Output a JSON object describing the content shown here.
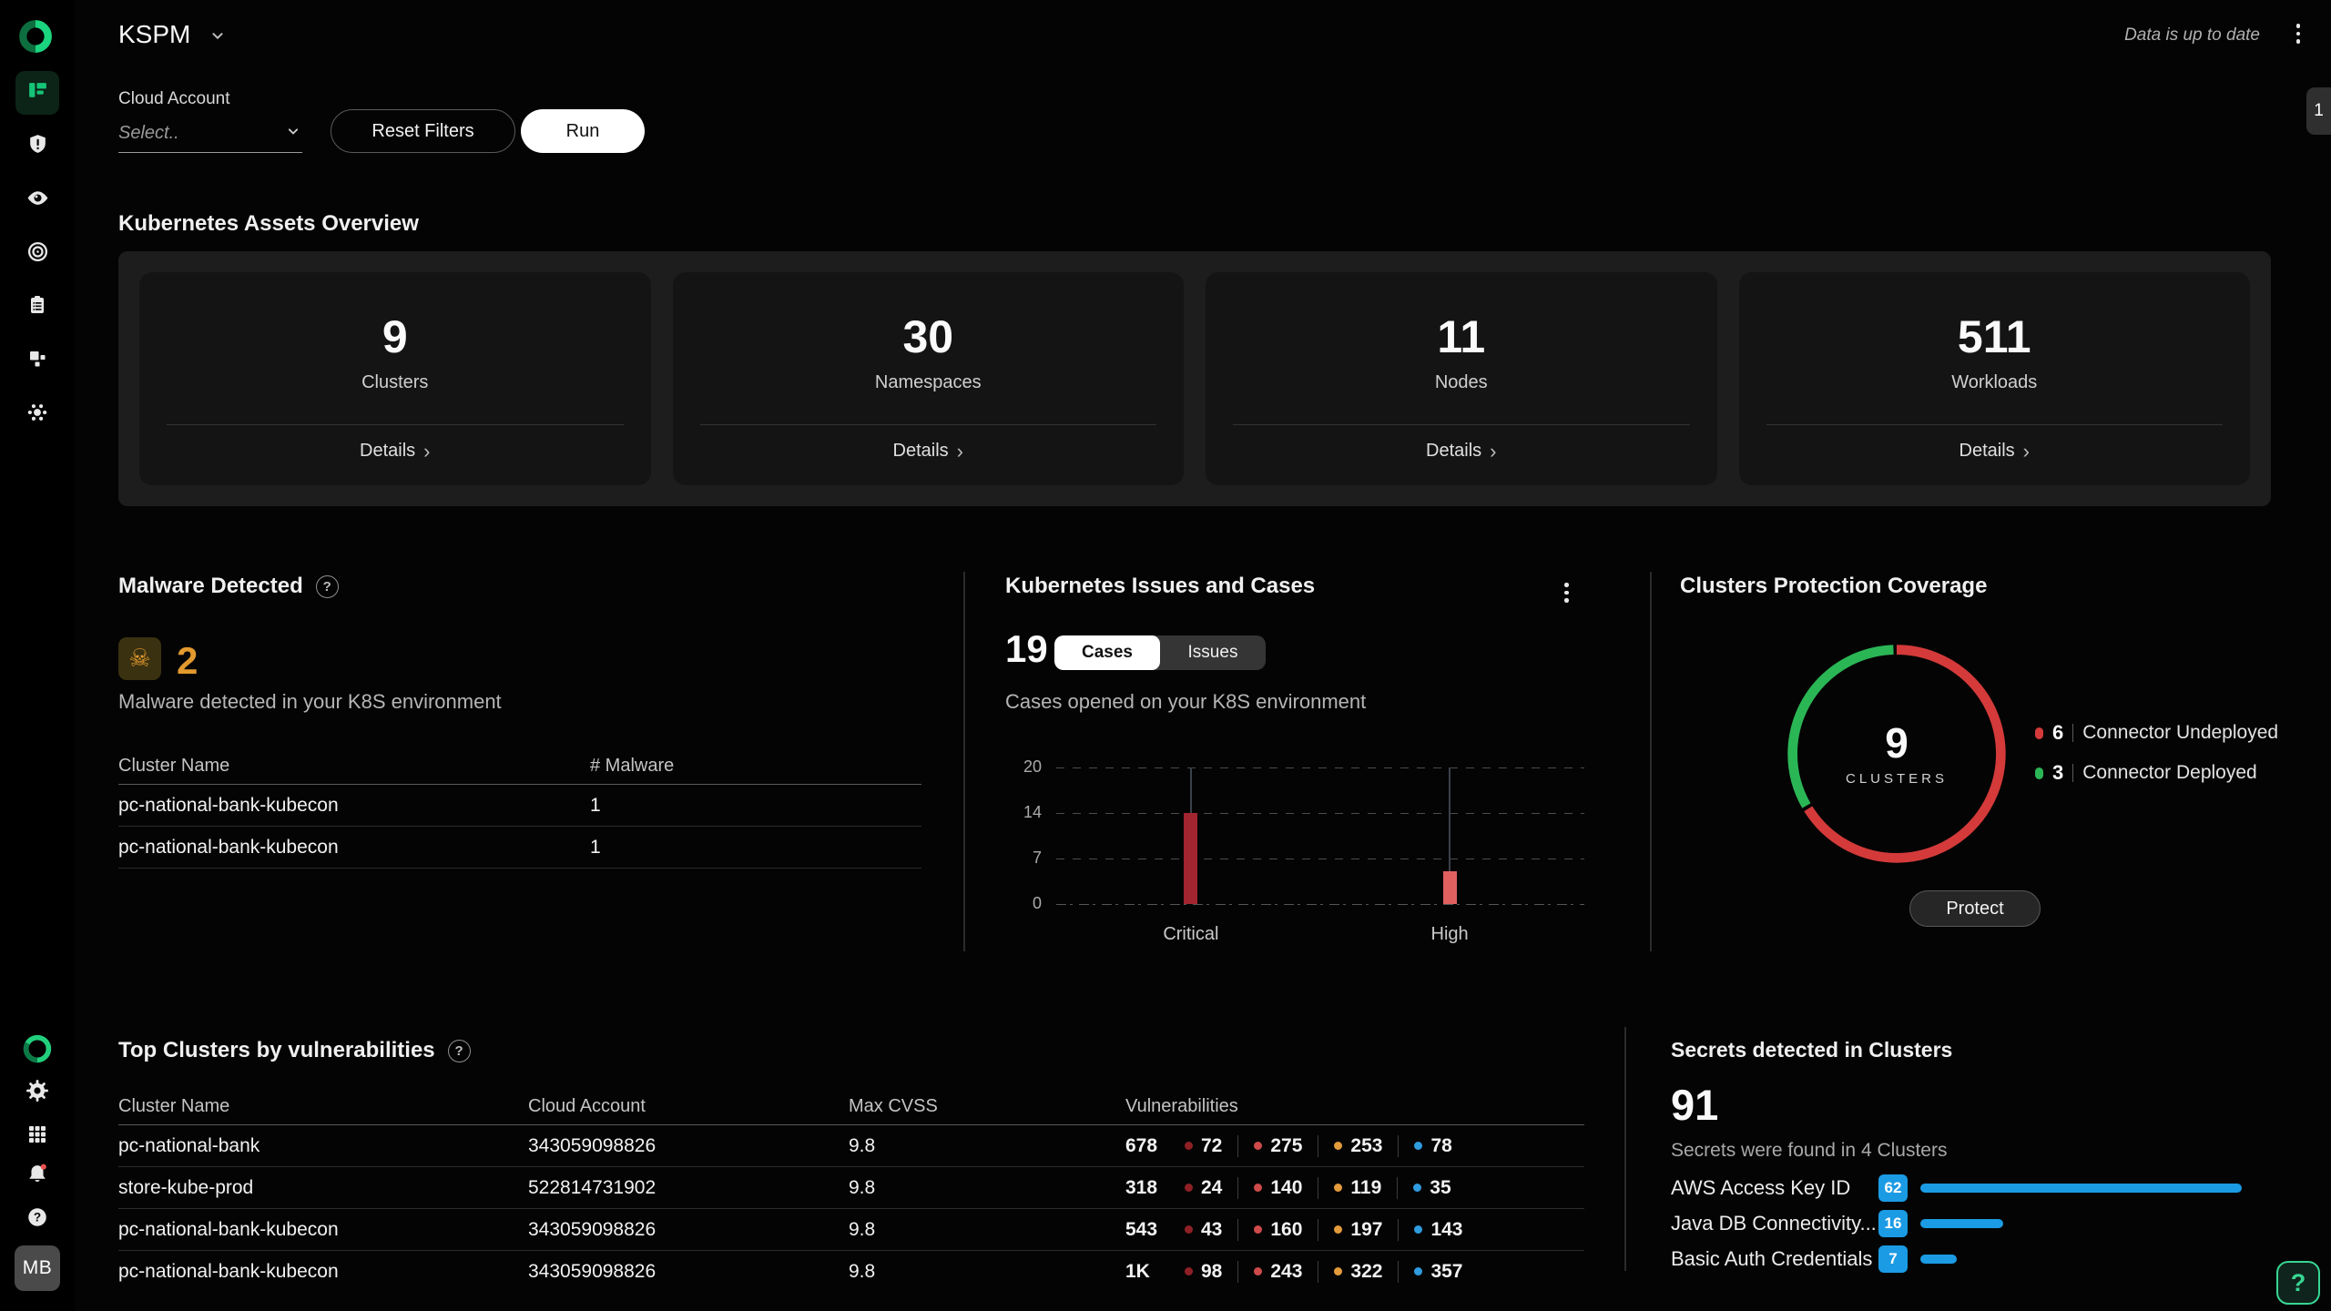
{
  "app": {
    "title": "KSPM",
    "status_text": "Data is up to date",
    "side_tab_badge": "1",
    "avatar_initials": "MB"
  },
  "sidebar": {
    "top_icons": [
      "dashboard-icon",
      "shield-alert-icon",
      "eye-icon",
      "target-icon",
      "clipboard-icon",
      "blocks-icon",
      "threats-icon"
    ],
    "bottom_icons": [
      "brand-logo",
      "settings-gear-icon",
      "apps-grid-icon",
      "notifications-bell-icon",
      "help-icon",
      "user-avatar"
    ]
  },
  "filters": {
    "label": "Cloud Account",
    "placeholder": "Select..",
    "reset_label": "Reset Filters",
    "run_label": "Run"
  },
  "assets_overview": {
    "title": "Kubernetes Assets Overview",
    "details_label": "Details",
    "cards": [
      {
        "value": "9",
        "label": "Clusters"
      },
      {
        "value": "30",
        "label": "Namespaces"
      },
      {
        "value": "11",
        "label": "Nodes"
      },
      {
        "value": "511",
        "label": "Workloads"
      }
    ]
  },
  "malware": {
    "title": "Malware Detected",
    "count": "2",
    "count_color": "#e2992e",
    "description": "Malware detected in your K8S environment",
    "columns": [
      "Cluster Name",
      "# Malware"
    ],
    "rows": [
      {
        "cluster": "pc-national-bank-kubecon",
        "count": "1"
      },
      {
        "cluster": "pc-national-bank-kubecon",
        "count": "1"
      }
    ]
  },
  "issues_cases": {
    "title": "Kubernetes Issues and Cases",
    "count": "19",
    "tabs": [
      "Cases",
      "Issues"
    ],
    "active_tab": "Cases",
    "description": "Cases opened on your K8S environment",
    "chart_data": {
      "type": "bar",
      "categories": [
        "Critical",
        "High"
      ],
      "values": [
        14,
        5
      ],
      "bar_colors": [
        "#a32530",
        "#e06060"
      ],
      "yticks": [
        0,
        7,
        14,
        20
      ],
      "ylim": [
        0,
        20
      ],
      "grid": "dashed horizontal",
      "x_pct": [
        25.5,
        74.5
      ]
    }
  },
  "coverage": {
    "title": "Clusters Protection Coverage",
    "center_value": "9",
    "center_label": "CLUSTERS",
    "button_label": "Protect",
    "chart_data": {
      "type": "pie",
      "labels": [
        "Connector Undeployed",
        "Connector Deployed"
      ],
      "values": [
        6,
        3
      ],
      "colors": [
        "#d43a3a",
        "#2bb656"
      ],
      "donut": true,
      "legend_position": "right"
    }
  },
  "top_clusters": {
    "title": "Top Clusters by vulnerabilities",
    "columns": [
      "Cluster Name",
      "Cloud Account",
      "Max CVSS",
      "Vulnerabilities"
    ],
    "severity_colors": [
      "#8f2025",
      "#cf4b4b",
      "#e39b3b",
      "#2f9ce0"
    ],
    "rows": [
      {
        "cluster": "pc-national-bank",
        "account": "343059098826",
        "cvss": "9.8",
        "total": "678",
        "severities": [
          "72",
          "275",
          "253",
          "78"
        ]
      },
      {
        "cluster": "store-kube-prod",
        "account": "522814731902",
        "cvss": "9.8",
        "total": "318",
        "severities": [
          "24",
          "140",
          "119",
          "35"
        ]
      },
      {
        "cluster": "pc-national-bank-kubecon",
        "account": "343059098826",
        "cvss": "9.8",
        "total": "543",
        "severities": [
          "43",
          "160",
          "197",
          "143"
        ]
      },
      {
        "cluster": "pc-national-bank-kubecon",
        "account": "343059098826",
        "cvss": "9.8",
        "total": "1K",
        "severities": [
          "98",
          "243",
          "322",
          "357"
        ]
      }
    ]
  },
  "secrets": {
    "title": "Secrets detected in Clusters",
    "count": "91",
    "description": "Secrets were found in 4 Clusters",
    "bar_color": "#1b9be4",
    "chart_data": {
      "type": "bar",
      "categories": [
        "AWS Access Key ID",
        "Java DB Connectivity...",
        "Basic Auth Credentials"
      ],
      "values": [
        62,
        16,
        7
      ]
    }
  },
  "floating_help_label": "?"
}
